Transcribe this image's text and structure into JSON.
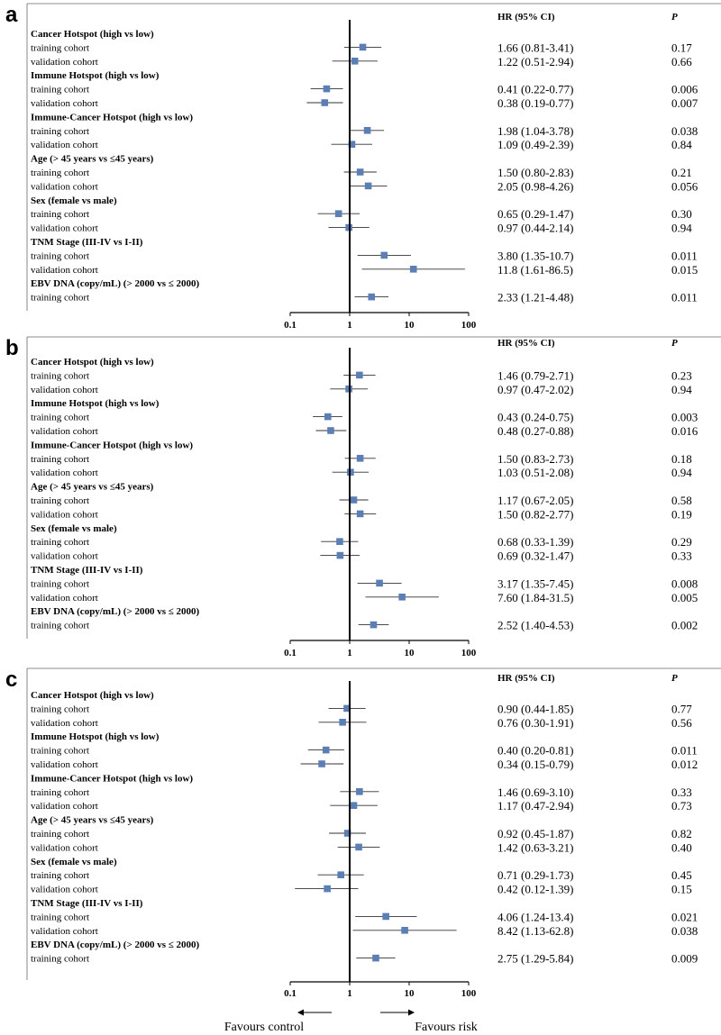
{
  "chart_data": [
    {
      "type": "forest",
      "panel": "a",
      "header_hr": "HR (95% CI)",
      "header_p": "P",
      "x_scale": "log",
      "xlim": [
        0.1,
        100
      ],
      "x_ticks": [
        "0.1",
        "1",
        "10",
        "100"
      ],
      "reference_line": 1,
      "groups": [
        {
          "title": "Cancer Hotspot (high vs low)",
          "rows": [
            {
              "label": "training cohort",
              "hr": 1.66,
              "lo": 0.81,
              "hi": 3.41,
              "hr_text": "1.66 (0.81-3.41)",
              "p": "0.17"
            },
            {
              "label": "validation cohort",
              "hr": 1.22,
              "lo": 0.51,
              "hi": 2.94,
              "hr_text": "1.22 (0.51-2.94)",
              "p": "0.66"
            }
          ]
        },
        {
          "title": "Immune Hotspot (high vs low)",
          "rows": [
            {
              "label": "training cohort",
              "hr": 0.41,
              "lo": 0.22,
              "hi": 0.77,
              "hr_text": "0.41 (0.22-0.77)",
              "p": "0.006"
            },
            {
              "label": "validation cohort",
              "hr": 0.38,
              "lo": 0.19,
              "hi": 0.77,
              "hr_text": "0.38 (0.19-0.77)",
              "p": "0.007"
            }
          ]
        },
        {
          "title": "Immune-Cancer Hotspot (high vs low)",
          "rows": [
            {
              "label": "training cohort",
              "hr": 1.98,
              "lo": 1.04,
              "hi": 3.78,
              "hr_text": "1.98 (1.04-3.78)",
              "p": "0.038"
            },
            {
              "label": "validation cohort",
              "hr": 1.09,
              "lo": 0.49,
              "hi": 2.39,
              "hr_text": "1.09 (0.49-2.39)",
              "p": "0.84"
            }
          ]
        },
        {
          "title": "Age (> 45 years vs ≤45 years)",
          "rows": [
            {
              "label": "training cohort",
              "hr": 1.5,
              "lo": 0.8,
              "hi": 2.83,
              "hr_text": "1.50 (0.80-2.83)",
              "p": "0.21"
            },
            {
              "label": "validation cohort",
              "hr": 2.05,
              "lo": 0.98,
              "hi": 4.26,
              "hr_text": "2.05 (0.98-4.26)",
              "p": "0.056"
            }
          ]
        },
        {
          "title": "Sex (female vs male)",
          "rows": [
            {
              "label": "training cohort",
              "hr": 0.65,
              "lo": 0.29,
              "hi": 1.47,
              "hr_text": "0.65 (0.29-1.47)",
              "p": "0.30"
            },
            {
              "label": "validation cohort",
              "hr": 0.97,
              "lo": 0.44,
              "hi": 2.14,
              "hr_text": "0.97 (0.44-2.14)",
              "p": "0.94"
            }
          ]
        },
        {
          "title": "TNM Stage (III-IV vs I-II)",
          "rows": [
            {
              "label": "training cohort",
              "hr": 3.8,
              "lo": 1.35,
              "hi": 10.7,
              "hr_text": "3.80 (1.35-10.7)",
              "p": "0.011"
            },
            {
              "label": "validation cohort",
              "hr": 11.8,
              "lo": 1.61,
              "hi": 86.5,
              "hr_text": "11.8 (1.61-86.5)",
              "p": "0.015"
            }
          ]
        },
        {
          "title": "EBV DNA (copy/mL) (> 2000 vs ≤ 2000)",
          "rows": [
            {
              "label": "training cohort",
              "hr": 2.33,
              "lo": 1.21,
              "hi": 4.48,
              "hr_text": "2.33 (1.21-4.48)",
              "p": "0.011"
            }
          ]
        }
      ]
    },
    {
      "type": "forest",
      "panel": "b",
      "header_hr": "HR (95% CI)",
      "header_p": "P",
      "x_scale": "log",
      "xlim": [
        0.1,
        100
      ],
      "x_ticks": [
        "0.1",
        "1",
        "10",
        "100"
      ],
      "reference_line": 1,
      "groups": [
        {
          "title": "Cancer Hotspot (high vs low)",
          "rows": [
            {
              "label": "training cohort",
              "hr": 1.46,
              "lo": 0.79,
              "hi": 2.71,
              "hr_text": "1.46 (0.79-2.71)",
              "p": "0.23"
            },
            {
              "label": "validation cohort",
              "hr": 0.97,
              "lo": 0.47,
              "hi": 2.02,
              "hr_text": "0.97 (0.47-2.02)",
              "p": "0.94"
            }
          ]
        },
        {
          "title": "Immune Hotspot (high vs low)",
          "rows": [
            {
              "label": "training cohort",
              "hr": 0.43,
              "lo": 0.24,
              "hi": 0.75,
              "hr_text": "0.43 (0.24-0.75)",
              "p": "0.003"
            },
            {
              "label": "validation cohort",
              "hr": 0.48,
              "lo": 0.27,
              "hi": 0.88,
              "hr_text": "0.48 (0.27-0.88)",
              "p": "0.016"
            }
          ]
        },
        {
          "title": "Immune-Cancer Hotspot (high vs low)",
          "rows": [
            {
              "label": "training cohort",
              "hr": 1.5,
              "lo": 0.83,
              "hi": 2.73,
              "hr_text": "1.50 (0.83-2.73)",
              "p": "0.18"
            },
            {
              "label": "validation cohort",
              "hr": 1.03,
              "lo": 0.51,
              "hi": 2.08,
              "hr_text": "1.03 (0.51-2.08)",
              "p": "0.94"
            }
          ]
        },
        {
          "title": "Age (> 45 years vs ≤45 years)",
          "rows": [
            {
              "label": "training cohort",
              "hr": 1.17,
              "lo": 0.67,
              "hi": 2.05,
              "hr_text": "1.17 (0.67-2.05)",
              "p": "0.58"
            },
            {
              "label": "validation cohort",
              "hr": 1.5,
              "lo": 0.82,
              "hi": 2.77,
              "hr_text": "1.50 (0.82-2.77)",
              "p": "0.19"
            }
          ]
        },
        {
          "title": "Sex (female vs male)",
          "rows": [
            {
              "label": "training cohort",
              "hr": 0.68,
              "lo": 0.33,
              "hi": 1.39,
              "hr_text": "0.68 (0.33-1.39)",
              "p": "0.29"
            },
            {
              "label": "validation cohort",
              "hr": 0.69,
              "lo": 0.32,
              "hi": 1.47,
              "hr_text": "0.69 (0.32-1.47)",
              "p": "0.33"
            }
          ]
        },
        {
          "title": "TNM Stage (III-IV vs I-II)",
          "rows": [
            {
              "label": "training cohort",
              "hr": 3.17,
              "lo": 1.35,
              "hi": 7.45,
              "hr_text": "3.17 (1.35-7.45)",
              "p": "0.008"
            },
            {
              "label": "validation cohort",
              "hr": 7.6,
              "lo": 1.84,
              "hi": 31.5,
              "hr_text": "7.60 (1.84-31.5)",
              "p": "0.005"
            }
          ]
        },
        {
          "title": "EBV DNA (copy/mL) (> 2000 vs ≤ 2000)",
          "rows": [
            {
              "label": "training cohort",
              "hr": 2.52,
              "lo": 1.4,
              "hi": 4.53,
              "hr_text": "2.52 (1.40-4.53)",
              "p": "0.002"
            }
          ]
        }
      ]
    },
    {
      "type": "forest",
      "panel": "c",
      "header_hr": "HR (95% CI)",
      "header_p": "P",
      "x_scale": "log",
      "xlim": [
        0.1,
        100
      ],
      "x_ticks": [
        "0.1",
        "1",
        "10",
        "100"
      ],
      "reference_line": 1,
      "favours_left": "Favours control",
      "favours_right": "Favours risk",
      "groups": [
        {
          "title": "Cancer Hotspot (high vs low)",
          "rows": [
            {
              "label": "training cohort",
              "hr": 0.9,
              "lo": 0.44,
              "hi": 1.85,
              "hr_text": "0.90 (0.44-1.85)",
              "p": "0.77"
            },
            {
              "label": "validation cohort",
              "hr": 0.76,
              "lo": 0.3,
              "hi": 1.91,
              "hr_text": "0.76 (0.30-1.91)",
              "p": "0.56"
            }
          ]
        },
        {
          "title": "Immune Hotspot (high vs low)",
          "rows": [
            {
              "label": "training cohort",
              "hr": 0.4,
              "lo": 0.2,
              "hi": 0.81,
              "hr_text": "0.40 (0.20-0.81)",
              "p": "0.011"
            },
            {
              "label": "validation cohort",
              "hr": 0.34,
              "lo": 0.15,
              "hi": 0.79,
              "hr_text": "0.34 (0.15-0.79)",
              "p": "0.012"
            }
          ]
        },
        {
          "title": "Immune-Cancer Hotspot (high vs low)",
          "rows": [
            {
              "label": "training cohort",
              "hr": 1.46,
              "lo": 0.69,
              "hi": 3.1,
              "hr_text": "1.46 (0.69-3.10)",
              "p": "0.33"
            },
            {
              "label": "validation cohort",
              "hr": 1.17,
              "lo": 0.47,
              "hi": 2.94,
              "hr_text": "1.17 (0.47-2.94)",
              "p": "0.73"
            }
          ]
        },
        {
          "title": "Age (> 45 years vs ≤45 years)",
          "rows": [
            {
              "label": "training cohort",
              "hr": 0.92,
              "lo": 0.45,
              "hi": 1.87,
              "hr_text": "0.92 (0.45-1.87)",
              "p": "0.82"
            },
            {
              "label": "validation cohort",
              "hr": 1.42,
              "lo": 0.63,
              "hi": 3.21,
              "hr_text": "1.42 (0.63-3.21)",
              "p": "0.40"
            }
          ]
        },
        {
          "title": "Sex (female vs male)",
          "rows": [
            {
              "label": "training cohort",
              "hr": 0.71,
              "lo": 0.29,
              "hi": 1.73,
              "hr_text": "0.71 (0.29-1.73)",
              "p": "0.45"
            },
            {
              "label": "validation cohort",
              "hr": 0.42,
              "lo": 0.12,
              "hi": 1.39,
              "hr_text": "0.42 (0.12-1.39)",
              "p": "0.15"
            }
          ]
        },
        {
          "title": "TNM Stage (III-IV vs I-II)",
          "rows": [
            {
              "label": "training cohort",
              "hr": 4.06,
              "lo": 1.24,
              "hi": 13.4,
              "hr_text": "4.06 (1.24-13.4)",
              "p": "0.021"
            },
            {
              "label": "validation cohort",
              "hr": 8.42,
              "lo": 1.13,
              "hi": 62.8,
              "hr_text": "8.42 (1.13-62.8)",
              "p": "0.038"
            }
          ]
        },
        {
          "title": "EBV DNA (copy/mL) (> 2000 vs ≤ 2000)",
          "rows": [
            {
              "label": "training cohort",
              "hr": 2.75,
              "lo": 1.29,
              "hi": 5.84,
              "hr_text": "2.75 (1.29-5.84)",
              "p": "0.009"
            }
          ]
        }
      ]
    }
  ],
  "colors": {
    "marker": "#5b7fb5",
    "line": "#000000",
    "ci": "#333333"
  }
}
